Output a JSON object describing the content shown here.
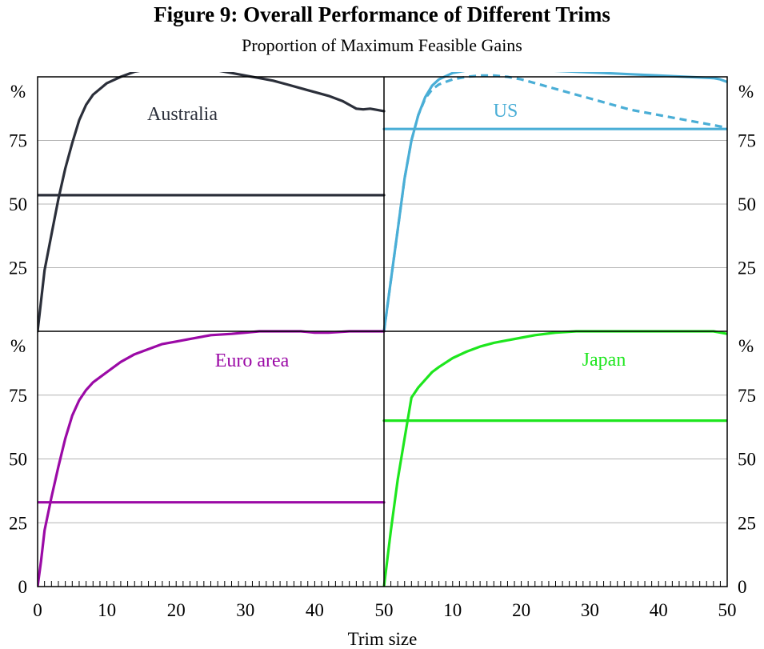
{
  "title": "Figure 9: Overall Performance of Different Trims",
  "subtitle": "Proportion of Maximum Feasible Gains",
  "xlabel": "Trim size",
  "unit_label": "%",
  "chart_data": {
    "type": "line",
    "xlim": [
      0,
      50
    ],
    "ylim": [
      0,
      100
    ],
    "x_ticks": [
      0,
      10,
      20,
      30,
      40,
      50
    ],
    "y_ticks": [
      0,
      25,
      50,
      75
    ],
    "panels": [
      {
        "name": "Australia",
        "color": "#2b2f3a",
        "row": 0,
        "col": 0,
        "series": [
          {
            "style": "solid",
            "x": [
              0,
              1,
              2,
              3,
              4,
              5,
              6,
              7,
              8,
              10,
              12,
              14,
              16,
              18,
              20,
              22,
              24,
              26,
              28,
              30,
              32,
              34,
              36,
              38,
              40,
              42,
              44,
              45,
              46,
              47,
              48,
              49,
              50
            ],
            "y": [
              0,
              24,
              38,
              52,
              64,
              74,
              83,
              89,
              93,
              97.5,
              100,
              102,
              103,
              103.5,
              103.5,
              103.5,
              103,
              102.5,
              101.5,
              100.5,
              99.5,
              98.5,
              97,
              95.5,
              94,
              92.5,
              90.5,
              89,
              87.5,
              87.2,
              87.5,
              87,
              86.5
            ]
          },
          {
            "style": "solid",
            "x": [
              0,
              50
            ],
            "y": [
              53.5,
              53.5
            ]
          }
        ]
      },
      {
        "name": "US",
        "color": "#4aaed6",
        "row": 0,
        "col": 1,
        "series": [
          {
            "style": "solid",
            "x": [
              0,
              1,
              2,
              3,
              4,
              5,
              6,
              7,
              8,
              10,
              12,
              14,
              16,
              18,
              20,
              24,
              28,
              32,
              36,
              40,
              44,
              48,
              49,
              50
            ],
            "y": [
              0,
              20,
              40,
              60,
              75,
              85,
              92,
              96.5,
              99,
              101.5,
              102.5,
              103,
              103.5,
              103.5,
              103,
              102.5,
              102,
              101.5,
              101,
              100.5,
              100,
              99.5,
              99,
              98
            ]
          },
          {
            "style": "dashed",
            "x": [
              0,
              1,
              2,
              3,
              4,
              5,
              6,
              7,
              8,
              10,
              12,
              14,
              16,
              18,
              20,
              22,
              24,
              26,
              28,
              30,
              32,
              34,
              36,
              38,
              40,
              42,
              44,
              46,
              48,
              50
            ],
            "y": [
              0,
              20,
              40,
              60,
              75,
              85,
              91.5,
              95,
              97,
              99,
              100,
              100.5,
              100.5,
              100,
              99,
              97.5,
              96,
              94.5,
              93,
              91.5,
              90,
              88.5,
              87,
              86,
              85,
              84,
              83,
              82,
              81,
              80
            ]
          },
          {
            "style": "solid",
            "x": [
              0,
              50
            ],
            "y": [
              79.5,
              79.5
            ]
          }
        ]
      },
      {
        "name": "Euro area",
        "color": "#9b0aa6",
        "row": 1,
        "col": 0,
        "series": [
          {
            "style": "solid",
            "x": [
              0,
              0.5,
              1,
              2,
              3,
              4,
              5,
              6,
              7,
              8,
              10,
              12,
              14,
              16,
              18,
              20,
              22,
              25,
              28,
              30,
              32,
              35,
              38,
              40,
              42,
              45,
              48,
              50
            ],
            "y": [
              0,
              10,
              22,
              35,
              47,
              58,
              67,
              73,
              77,
              80,
              84,
              88,
              91,
              93,
              95,
              96,
              97,
              98.5,
              99,
              99.5,
              100,
              100,
              100,
              99.5,
              99.5,
              100,
              100,
              100
            ]
          },
          {
            "style": "solid",
            "x": [
              0,
              50
            ],
            "y": [
              33,
              33
            ]
          }
        ]
      },
      {
        "name": "Japan",
        "color": "#1ee61e",
        "row": 1,
        "col": 1,
        "series": [
          {
            "style": "solid",
            "x": [
              0,
              1,
              2,
              3,
              4,
              5,
              6,
              7,
              8,
              10,
              12,
              14,
              16,
              18,
              20,
              22,
              25,
              28,
              30,
              32,
              35,
              38,
              40,
              42,
              45,
              48,
              49,
              50
            ],
            "y": [
              0,
              22,
              42,
              58,
              74,
              78,
              81,
              84,
              86,
              89.5,
              92,
              94,
              95.5,
              96.5,
              97.5,
              98.5,
              99.5,
              100,
              100,
              100,
              100,
              100,
              100,
              100,
              100,
              100,
              99.5,
              99
            ]
          },
          {
            "style": "solid",
            "x": [
              0,
              50
            ],
            "y": [
              65,
              65
            ]
          }
        ]
      }
    ]
  }
}
